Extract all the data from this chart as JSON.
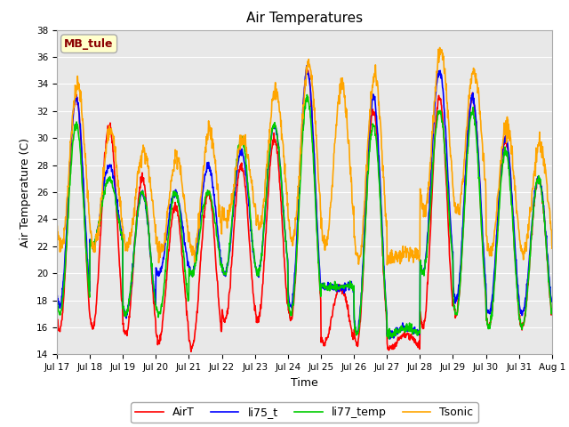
{
  "title": "Air Temperatures",
  "xlabel": "Time",
  "ylabel": "Air Temperature (C)",
  "ylim": [
    14,
    38
  ],
  "yticks": [
    14,
    16,
    18,
    20,
    22,
    24,
    26,
    28,
    30,
    32,
    34,
    36,
    38
  ],
  "plot_bg_color": "#e8e8e8",
  "grid_color": "white",
  "annotation_text": "MB_tule",
  "annotation_color": "#8b0000",
  "annotation_bg": "#ffffcc",
  "series_colors": {
    "AirT": "#ff0000",
    "li75_t": "#0000ff",
    "li77_temp": "#00cc00",
    "Tsonic": "#ffa500"
  },
  "linewidth": 1.2,
  "tick_labels": [
    "Jul 17",
    "Jul 18",
    "Jul 19",
    "Jul 20",
    "Jul 21",
    "Jul 22",
    "Jul 23",
    "Jul 24",
    "Jul 25",
    "Jul 26",
    "Jul 27",
    "Jul 28",
    "Jul 29",
    "Jul 30",
    "Jul 31",
    "Aug 1"
  ],
  "tick_positions": [
    0,
    1,
    2,
    3,
    4,
    5,
    6,
    7,
    8,
    9,
    10,
    11,
    12,
    13,
    14,
    15
  ]
}
